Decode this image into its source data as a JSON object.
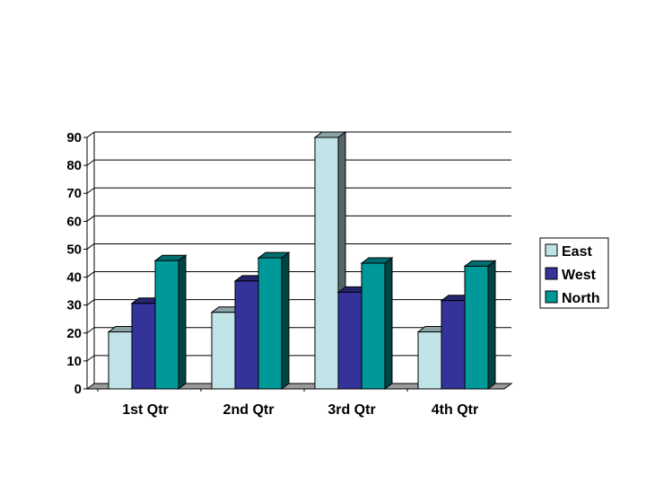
{
  "chart_data": {
    "type": "bar",
    "style": "3d-clustered-column",
    "categories": [
      "1st Qtr",
      "2nd Qtr",
      "3rd Qtr",
      "4th Qtr"
    ],
    "series": [
      {
        "name": "East",
        "values": [
          20.4,
          27.4,
          90,
          20.4
        ],
        "color": "#bfe3e6"
      },
      {
        "name": "West",
        "values": [
          30.6,
          38.6,
          34.6,
          31.6
        ],
        "color": "#333399"
      },
      {
        "name": "North",
        "values": [
          45.9,
          46.9,
          45,
          43.9
        ],
        "color": "#009999"
      }
    ],
    "y_ticks": [
      "0",
      "10",
      "20",
      "30",
      "40",
      "50",
      "60",
      "70",
      "80",
      "90"
    ],
    "ylim": [
      0,
      90
    ],
    "grid": true,
    "legend": "right"
  }
}
